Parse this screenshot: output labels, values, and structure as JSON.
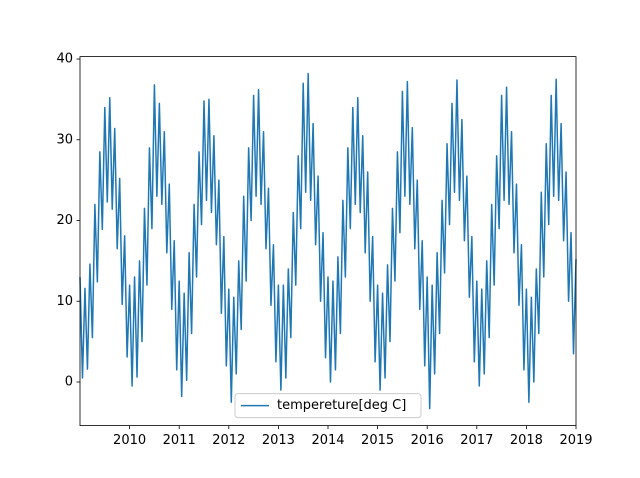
{
  "chart_data": {
    "type": "line",
    "x": [
      2009,
      2009.05,
      2009.1,
      2009.15,
      2009.2,
      2009.25,
      2009.3,
      2009.35,
      2009.4,
      2009.45,
      2009.5,
      2009.55,
      2009.6,
      2009.65,
      2009.7,
      2009.75,
      2009.8,
      2009.85,
      2009.9,
      2009.95,
      2010,
      2010.05,
      2010.1,
      2010.15,
      2010.2,
      2010.25,
      2010.3,
      2010.35,
      2010.4,
      2010.45,
      2010.5,
      2010.55,
      2010.6,
      2010.65,
      2010.7,
      2010.75,
      2010.8,
      2010.85,
      2010.9,
      2010.95,
      2011,
      2011.05,
      2011.1,
      2011.15,
      2011.2,
      2011.25,
      2011.3,
      2011.35,
      2011.4,
      2011.45,
      2011.5,
      2011.55,
      2011.6,
      2011.65,
      2011.7,
      2011.75,
      2011.8,
      2011.85,
      2011.9,
      2011.95,
      2012,
      2012.05,
      2012.1,
      2012.15,
      2012.2,
      2012.25,
      2012.3,
      2012.35,
      2012.4,
      2012.45,
      2012.5,
      2012.55,
      2012.6,
      2012.65,
      2012.7,
      2012.75,
      2012.8,
      2012.85,
      2012.9,
      2012.95,
      2013,
      2013.05,
      2013.1,
      2013.15,
      2013.2,
      2013.25,
      2013.3,
      2013.35,
      2013.4,
      2013.45,
      2013.5,
      2013.55,
      2013.6,
      2013.65,
      2013.7,
      2013.75,
      2013.8,
      2013.85,
      2013.9,
      2013.95,
      2014,
      2014.05,
      2014.1,
      2014.15,
      2014.2,
      2014.25,
      2014.3,
      2014.35,
      2014.4,
      2014.45,
      2014.5,
      2014.55,
      2014.6,
      2014.65,
      2014.7,
      2014.75,
      2014.8,
      2014.85,
      2014.9,
      2014.95,
      2015,
      2015.05,
      2015.1,
      2015.15,
      2015.2,
      2015.25,
      2015.3,
      2015.35,
      2015.4,
      2015.45,
      2015.5,
      2015.55,
      2015.6,
      2015.65,
      2015.7,
      2015.75,
      2015.8,
      2015.85,
      2015.9,
      2015.95,
      2016,
      2016.05,
      2016.1,
      2016.15,
      2016.2,
      2016.25,
      2016.3,
      2016.35,
      2016.4,
      2016.45,
      2016.5,
      2016.55,
      2016.6,
      2016.65,
      2016.7,
      2016.75,
      2016.8,
      2016.85,
      2016.9,
      2016.95,
      2017,
      2017.05,
      2017.1,
      2017.15,
      2017.2,
      2017.25,
      2017.3,
      2017.35,
      2017.4,
      2017.45,
      2017.5,
      2017.55,
      2017.6,
      2017.65,
      2017.7,
      2017.75,
      2017.8,
      2017.85,
      2017.9,
      2017.95,
      2018,
      2018.05,
      2018.1,
      2018.15,
      2018.2,
      2018.25,
      2018.3,
      2018.35,
      2018.4,
      2018.45,
      2018.5,
      2018.55,
      2018.6,
      2018.65,
      2018.7,
      2018.75,
      2018.8,
      2018.85,
      2018.9,
      2018.95,
      2019
    ],
    "series": [
      {
        "name": "tempereture[deg C]",
        "color": "#1f77b4",
        "values": [
          13,
          0.5,
          11.6,
          1.6,
          14.6,
          5.5,
          22,
          12.4,
          28.5,
          18.9,
          34,
          22.3,
          35.2,
          21.4,
          31.4,
          16.5,
          25.2,
          9.6,
          18.1,
          3.1,
          12,
          -0.5,
          13,
          0.6,
          15,
          5,
          21.5,
          12,
          29,
          19,
          36.8,
          23,
          34.5,
          22,
          31,
          16,
          24.5,
          9,
          17.5,
          1.5,
          12.5,
          -1.8,
          11,
          0.2,
          16,
          6,
          22,
          13,
          28.5,
          19.5,
          34.8,
          22.5,
          35,
          21,
          30.5,
          17,
          25,
          8.5,
          18,
          2,
          11.5,
          -2.5,
          10.5,
          1,
          15,
          6.5,
          23,
          12.5,
          29,
          20,
          35.5,
          23,
          36.2,
          22,
          31,
          16.5,
          24,
          9.5,
          17,
          2.5,
          12,
          -1,
          12,
          0.5,
          14,
          5.5,
          21,
          12,
          28,
          19,
          37,
          23.5,
          38.2,
          22.5,
          32,
          17,
          25.5,
          10,
          18.5,
          3,
          13,
          0,
          12.5,
          1.5,
          15.5,
          6,
          22.5,
          13,
          29,
          19,
          34,
          22,
          35.2,
          21,
          30.5,
          16,
          26,
          10,
          18,
          2.5,
          12,
          -1,
          11,
          0.5,
          14.5,
          5,
          21.5,
          12.5,
          28.5,
          18.5,
          36,
          23,
          37.2,
          22,
          31.5,
          16.5,
          25,
          9,
          17.5,
          2,
          13,
          -3.3,
          12,
          1,
          16,
          6,
          22.5,
          13.5,
          29.5,
          19.5,
          34.5,
          23.5,
          37.4,
          22.5,
          32.5,
          17.5,
          25.5,
          10.5,
          18,
          2.5,
          12.5,
          -0.5,
          11.5,
          1,
          15,
          5.5,
          22,
          12,
          28,
          19,
          35.5,
          22.5,
          36.5,
          22,
          31,
          16,
          24.5,
          9.5,
          17,
          1.5,
          11.5,
          -2.5,
          10.5,
          0,
          14,
          6,
          23.5,
          13,
          29.5,
          19.5,
          35.5,
          23,
          37.5,
          22.5,
          32,
          17.5,
          26,
          10,
          18.5,
          3.5,
          15.2
        ]
      }
    ],
    "xlim": [
      2009,
      2019
    ],
    "xticks": [
      2010,
      2011,
      2012,
      2013,
      2014,
      2015,
      2016,
      2017,
      2018,
      2019
    ],
    "ylim": [
      -5.4,
      40.3
    ],
    "yticks": [
      0,
      10,
      20,
      30,
      40
    ],
    "grid": false,
    "legend": "lower center"
  }
}
